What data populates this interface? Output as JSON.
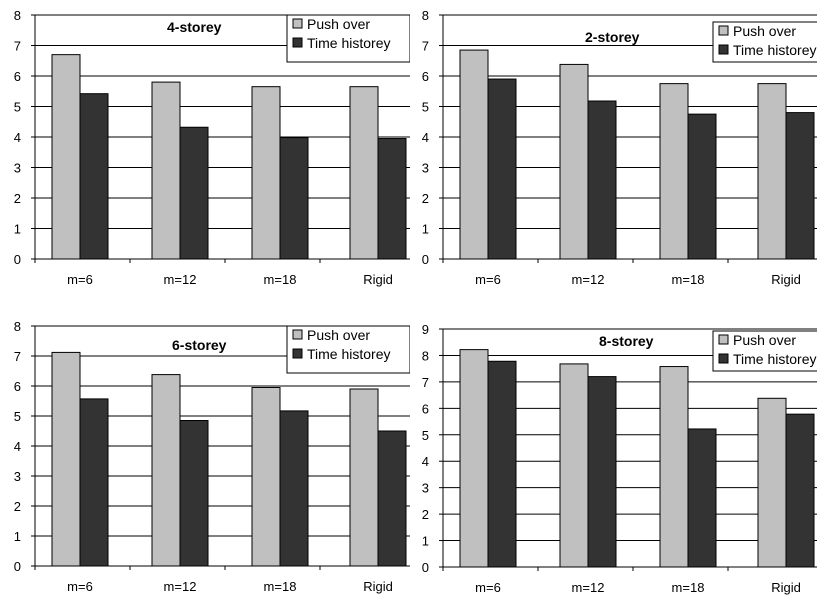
{
  "chart_data": [
    {
      "type": "bar",
      "title": "4-storey",
      "categories": [
        "m=6",
        "m=12",
        "m=18",
        "Rigid"
      ],
      "ylim": [
        0,
        8
      ],
      "yticks": [
        "0",
        "1",
        "2",
        "3",
        "4",
        "5",
        "6",
        "7",
        "8"
      ],
      "grid": true,
      "legend": "top-right",
      "series": [
        {
          "name": "Push over",
          "color": "#c0c0c0",
          "values": [
            6.7,
            5.8,
            5.65,
            5.65
          ]
        },
        {
          "name": "Time historey",
          "color": "#333333",
          "values": [
            5.42,
            4.32,
            3.98,
            3.95
          ]
        }
      ]
    },
    {
      "type": "bar",
      "title": "2-storey",
      "categories": [
        "m=6",
        "m=12",
        "m=18",
        "Rigid"
      ],
      "ylim": [
        0,
        8
      ],
      "yticks": [
        "0",
        "1",
        "2",
        "3",
        "4",
        "5",
        "6",
        "7",
        "8"
      ],
      "grid": true,
      "legend": "top-right",
      "series": [
        {
          "name": "Push over",
          "color": "#c0c0c0",
          "values": [
            6.85,
            6.38,
            5.75,
            5.75
          ]
        },
        {
          "name": "Time historey",
          "color": "#333333",
          "values": [
            5.9,
            5.18,
            4.75,
            4.8
          ]
        }
      ]
    },
    {
      "type": "bar",
      "title": "6-storey",
      "categories": [
        "m=6",
        "m=12",
        "m=18",
        "Rigid"
      ],
      "ylim": [
        0,
        8
      ],
      "yticks": [
        "0",
        "1",
        "2",
        "3",
        "4",
        "5",
        "6",
        "7",
        "8"
      ],
      "grid": true,
      "legend": "top-right",
      "series": [
        {
          "name": "Push over",
          "color": "#c0c0c0",
          "values": [
            7.12,
            6.38,
            5.95,
            5.9
          ]
        },
        {
          "name": "Time historey",
          "color": "#333333",
          "values": [
            5.57,
            4.85,
            5.17,
            4.5
          ]
        }
      ]
    },
    {
      "type": "bar",
      "title": "8-storey",
      "categories": [
        "m=6",
        "m=12",
        "m=18",
        "Rigid"
      ],
      "ylim": [
        0,
        9
      ],
      "yticks": [
        "0",
        "1",
        "2",
        "3",
        "4",
        "5",
        "6",
        "7",
        "8",
        "9"
      ],
      "grid": true,
      "legend": "top-right",
      "series": [
        {
          "name": "Push over",
          "color": "#c0c0c0",
          "values": [
            8.22,
            7.68,
            7.58,
            6.38
          ]
        },
        {
          "name": "Time historey",
          "color": "#333333",
          "values": [
            7.78,
            7.2,
            5.22,
            5.78
          ]
        }
      ]
    }
  ]
}
